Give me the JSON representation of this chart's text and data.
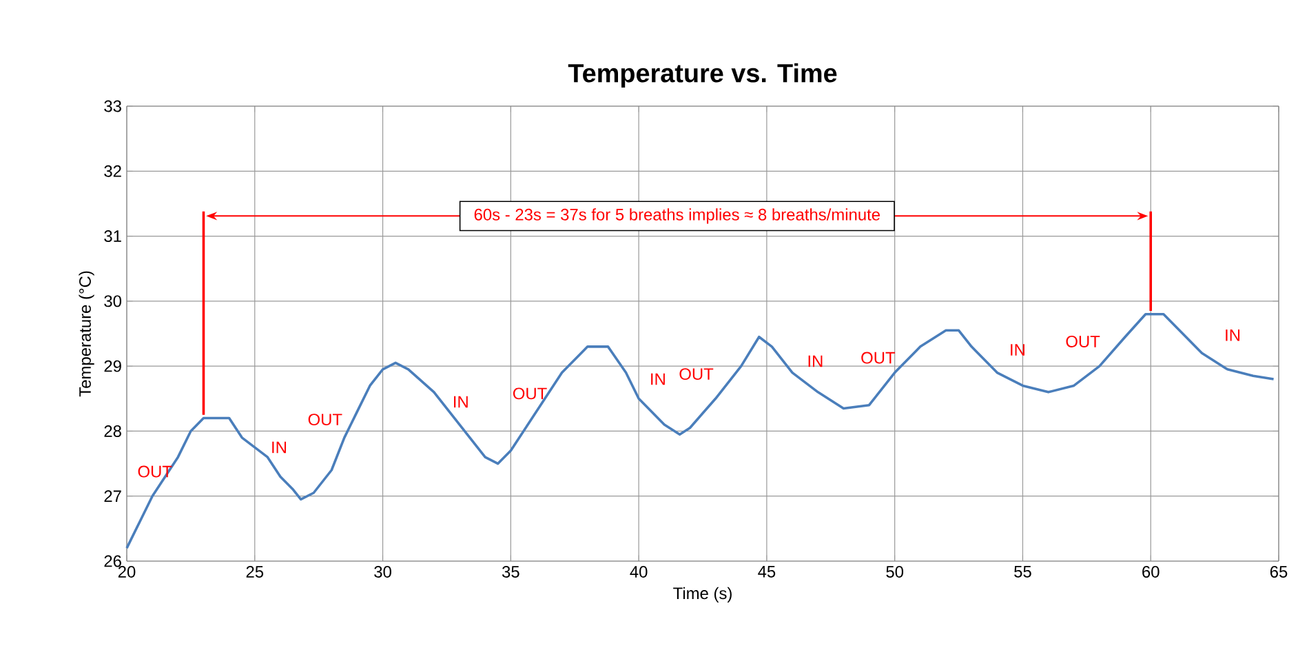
{
  "chart_data": {
    "type": "line",
    "title": "Temperature vs. Time",
    "xlabel": "Time (s)",
    "ylabel": "Temperature (°C)",
    "xlim": [
      20,
      65
    ],
    "xticks": [
      20,
      25,
      30,
      35,
      40,
      45,
      50,
      55,
      60,
      65
    ],
    "ylim": [
      26,
      33
    ],
    "yticks": [
      26,
      27,
      28,
      29,
      30,
      31,
      32,
      33
    ],
    "grid": true,
    "marker": "none",
    "line_style": "solid",
    "series": [
      {
        "color": "#4a7ebb",
        "x": [
          20,
          20.5,
          21,
          22,
          22.5,
          23,
          24,
          24.5,
          25.5,
          26,
          26.5,
          26.8,
          27.3,
          28,
          28.5,
          29,
          29.5,
          30,
          30.5,
          31,
          32,
          33,
          34,
          34.5,
          35,
          36,
          37,
          38,
          38.8,
          39.5,
          40,
          41,
          41.6,
          42,
          43,
          44,
          44.7,
          45.2,
          46,
          47,
          48,
          49,
          50,
          51,
          52,
          52.5,
          53,
          54,
          55,
          56,
          57,
          58,
          59,
          59.8,
          60.5,
          61,
          62,
          63,
          64,
          64.8
        ],
        "values": [
          26.2,
          26.6,
          27.0,
          27.6,
          28.0,
          28.2,
          28.2,
          27.9,
          27.6,
          27.3,
          27.1,
          26.95,
          27.05,
          27.4,
          27.9,
          28.3,
          28.7,
          28.95,
          29.05,
          28.95,
          28.6,
          28.1,
          27.6,
          27.5,
          27.7,
          28.3,
          28.9,
          29.3,
          29.3,
          28.9,
          28.5,
          28.1,
          27.95,
          28.05,
          28.5,
          29.0,
          29.45,
          29.3,
          28.9,
          28.6,
          28.35,
          28.4,
          28.9,
          29.3,
          29.55,
          29.55,
          29.3,
          28.9,
          28.7,
          28.6,
          28.7,
          29.0,
          29.45,
          29.8,
          29.8,
          29.6,
          29.2,
          28.95,
          28.85,
          28.8
        ]
      }
    ],
    "ref_lines": [
      {
        "axis": "x",
        "value": 23,
        "color": "#ff0000"
      },
      {
        "axis": "x",
        "value": 60,
        "color": "#ff0000"
      }
    ],
    "annotations": [
      "60s - 23s = 37s for 5 breaths implies ≈ 8 breaths/minute",
      "OUT",
      "IN",
      "OUT",
      "IN",
      "OUT",
      "IN",
      "OUT",
      "IN",
      "OUT",
      "IN",
      "OUT",
      "IN"
    ]
  }
}
